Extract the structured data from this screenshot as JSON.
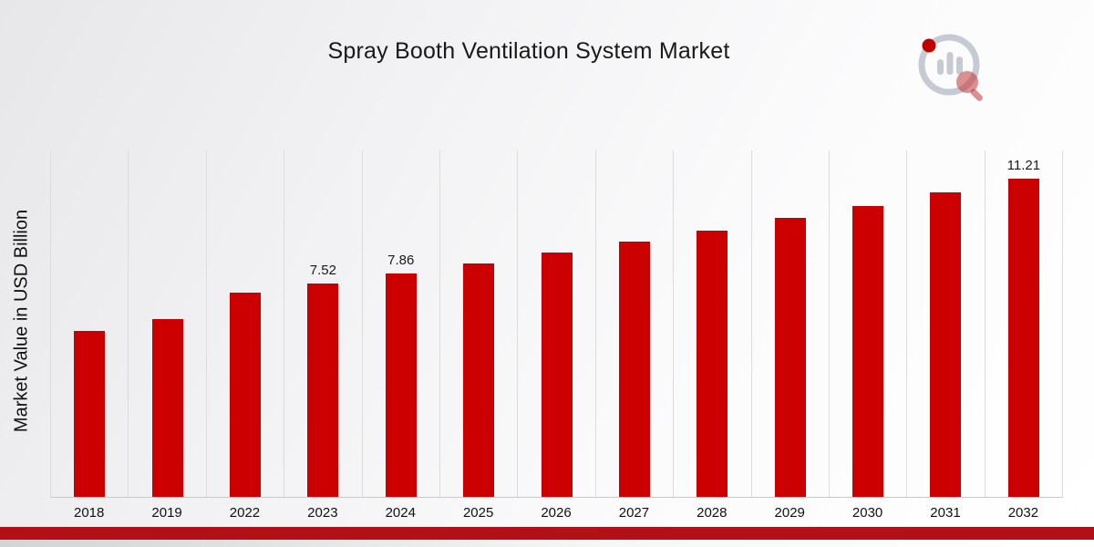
{
  "chart_data": {
    "type": "bar",
    "title": "Spray Booth Ventilation System Market",
    "ylabel": "Market Value in USD Billion",
    "categories": [
      "2018",
      "2019",
      "2022",
      "2023",
      "2024",
      "2025",
      "2026",
      "2027",
      "2028",
      "2029",
      "2030",
      "2031",
      "2032"
    ],
    "values": [
      5.85,
      6.25,
      7.2,
      7.52,
      7.86,
      8.22,
      8.59,
      8.98,
      9.38,
      9.81,
      10.25,
      10.72,
      11.21
    ],
    "value_labels": [
      "",
      "",
      "",
      "7.52",
      "7.86",
      "",
      "",
      "",
      "",
      "",
      "",
      "",
      "11.21"
    ],
    "bar_color": "#cc0001",
    "accent_color": "#b11116",
    "gridline_color": "#dcdcdc",
    "ylim": [
      0,
      12.2
    ],
    "grid": "vertical",
    "legend": "none"
  }
}
